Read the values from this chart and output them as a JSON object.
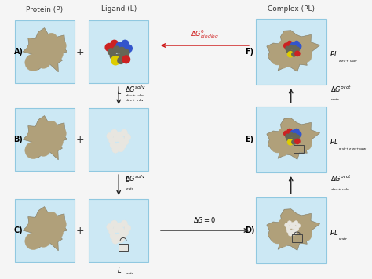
{
  "bg_color": "#f5f5f5",
  "cell_bg": "#cce8f4",
  "cell_border": "#90c8e0",
  "fig_width": 4.74,
  "fig_height": 3.56,
  "title_protein": "Protein (P)",
  "title_ligand": "Ligand (L)",
  "title_complex": "Complex (PL)",
  "row_labels": [
    "A)",
    "B)",
    "C)"
  ],
  "right_labels": [
    "F)",
    "E)",
    "D)"
  ],
  "protein_color": "#b0a07a",
  "protein_edge": "#807860",
  "arrow_black": "#222222",
  "arrow_red": "#cc1111"
}
